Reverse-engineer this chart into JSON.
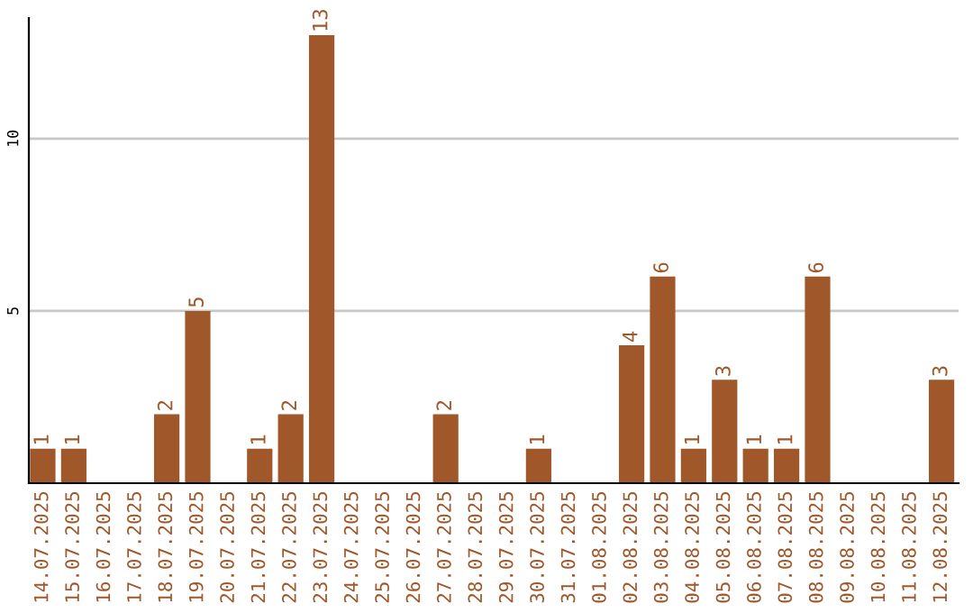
{
  "chart_data": {
    "type": "bar",
    "categories": [
      "14.07.2025",
      "15.07.2025",
      "16.07.2025",
      "17.07.2025",
      "18.07.2025",
      "19.07.2025",
      "20.07.2025",
      "21.07.2025",
      "22.07.2025",
      "23.07.2025",
      "24.07.2025",
      "25.07.2025",
      "26.07.2025",
      "27.07.2025",
      "28.07.2025",
      "29.07.2025",
      "30.07.2025",
      "31.07.2025",
      "01.08.2025",
      "02.08.2025",
      "03.08.2025",
      "04.08.2025",
      "05.08.2025",
      "06.08.2025",
      "07.08.2025",
      "08.08.2025",
      "09.08.2025",
      "10.08.2025",
      "11.08.2025",
      "12.08.2025"
    ],
    "values": [
      1,
      1,
      0,
      0,
      2,
      5,
      0,
      1,
      2,
      13,
      0,
      0,
      0,
      2,
      0,
      0,
      1,
      0,
      0,
      4,
      6,
      1,
      3,
      1,
      1,
      6,
      0,
      0,
      0,
      3
    ],
    "value_labels": [
      "1",
      "1",
      null,
      null,
      "2",
      "5",
      null,
      "1",
      "2",
      "13",
      null,
      null,
      null,
      "2",
      null,
      null,
      "1",
      null,
      null,
      "4",
      "6",
      "1",
      "3",
      "1",
      "1",
      "6",
      null,
      null,
      null,
      "3"
    ],
    "color": "#a0572a",
    "ylim": [
      0,
      13.5
    ],
    "yticks": [
      5,
      10
    ],
    "grid": "y"
  }
}
